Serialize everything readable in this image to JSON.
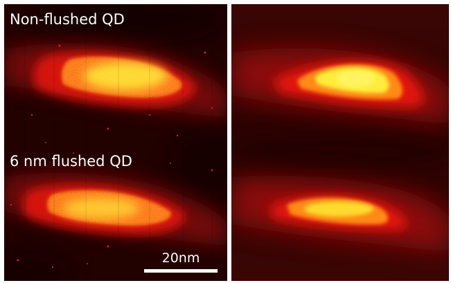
{
  "left_panel": {
    "top_label": "Non-flushed QD",
    "bottom_label": "6 nm flushed QD",
    "scale_bar_label": "20nm"
  },
  "colors": {
    "colormap_dark": "#1a0000",
    "colormap_mid": "#d0100a",
    "colormap_bright": "#ffee33",
    "text": "#ffffff"
  }
}
